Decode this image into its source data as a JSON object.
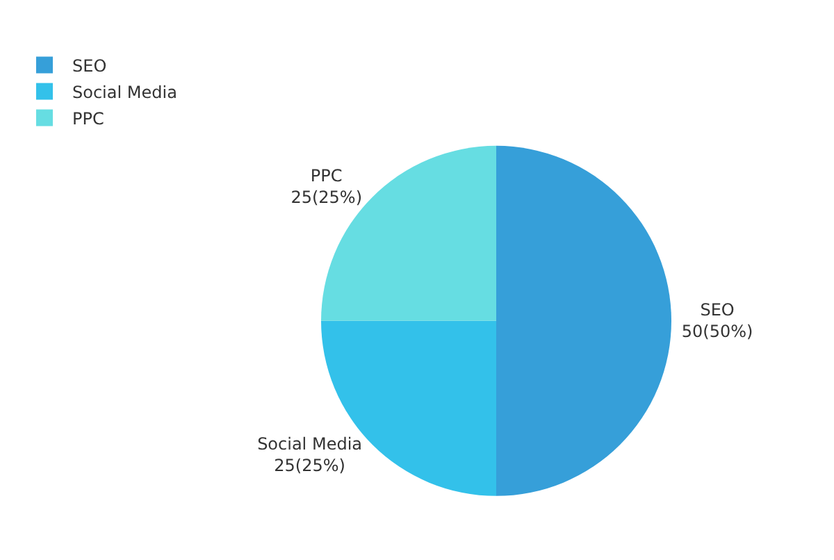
{
  "chart_data": {
    "type": "pie",
    "categories": [
      "SEO",
      "Social Media",
      "PPC"
    ],
    "values": [
      50,
      25,
      25
    ],
    "colors": [
      "#369fd9",
      "#33c1ea",
      "#66dde2"
    ],
    "value_labels": [
      "50(50%)",
      "25(25%)",
      "25(25%)"
    ],
    "legend": "top left"
  }
}
